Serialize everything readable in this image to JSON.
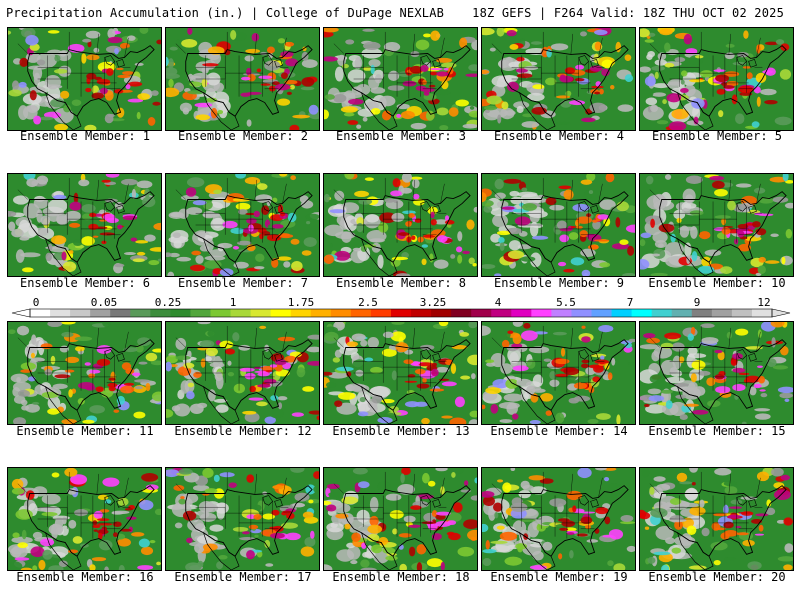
{
  "title_left": "Precipitation Accumulation (in.) | College of DuPage NEXLAB",
  "title_right": "18Z GEFS | F264 Valid: 18Z THU OCT 02 2025",
  "caption_prefix": "Ensemble Member: ",
  "members": [
    1,
    2,
    3,
    4,
    5,
    6,
    7,
    8,
    9,
    10,
    11,
    12,
    13,
    14,
    15,
    16,
    17,
    18,
    19,
    20
  ],
  "colorbar": {
    "tick_labels": [
      "0",
      "0.05",
      "0.25",
      "1",
      "1.75",
      "2.5",
      "3.25",
      "4",
      "5.5",
      "7",
      "9",
      "12"
    ],
    "colors": [
      "#ffffff",
      "#e0e0e0",
      "#c8c8c8",
      "#a0a0a0",
      "#787878",
      "#5a9a5a",
      "#3c8c3c",
      "#2e8b2e",
      "#52a63c",
      "#7cc832",
      "#a8d838",
      "#d8e830",
      "#ffff00",
      "#ffd400",
      "#ffb000",
      "#ff8c00",
      "#ff6400",
      "#ff3c00",
      "#e00000",
      "#c00000",
      "#a00000",
      "#800020",
      "#a0004a",
      "#c00080",
      "#e000c0",
      "#ff40ff",
      "#c080ff",
      "#9090ff",
      "#60a0ff",
      "#00d0ff",
      "#00ffff",
      "#40d0d0",
      "#60b0b0",
      "#808080",
      "#a0a0a0",
      "#c0c0c0",
      "#e0e0e0"
    ]
  },
  "map_colors": {
    "land_base": "#2e8b2e",
    "ocean": "#2e8b2e",
    "borders": "#000000"
  }
}
